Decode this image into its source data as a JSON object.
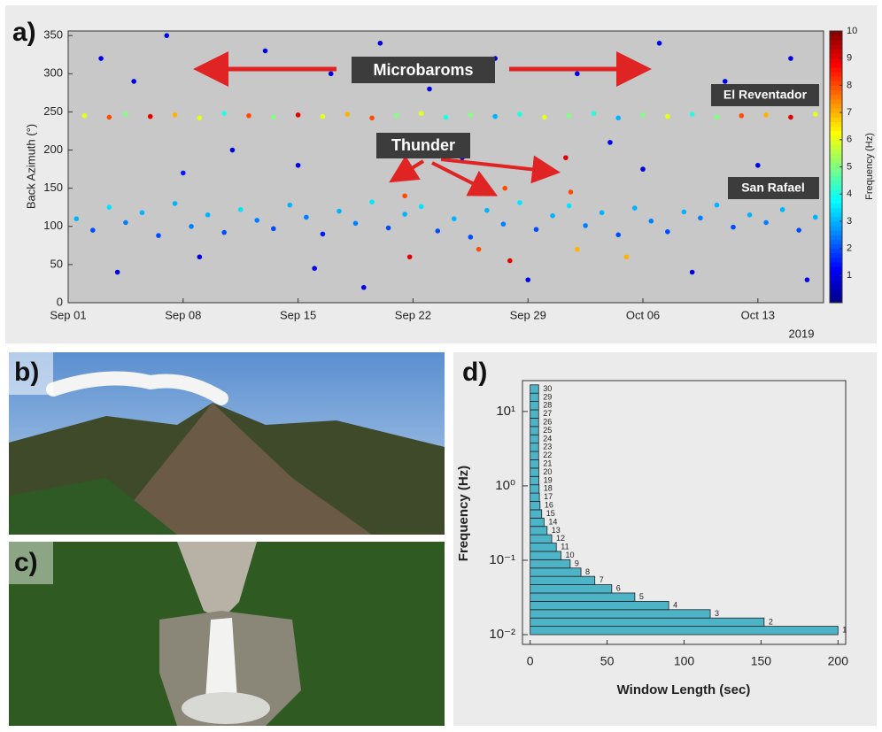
{
  "chart_data": [
    {
      "type": "scatter",
      "panel_label": "a)",
      "ylabel": "Back Azimuth (°)",
      "xlim": [
        0,
        46
      ],
      "ylim": [
        0,
        356
      ],
      "xticks": [
        {
          "value": 0,
          "label": "Sep 01"
        },
        {
          "value": 7,
          "label": "Sep 08"
        },
        {
          "value": 14,
          "label": "Sep 15"
        },
        {
          "value": 21,
          "label": "Sep 22"
        },
        {
          "value": 28,
          "label": "Sep 29"
        },
        {
          "value": 35,
          "label": "Oct 06"
        },
        {
          "value": 42,
          "label": "Oct 13"
        }
      ],
      "x_year_label": "2019",
      "yticks": [
        0,
        50,
        100,
        150,
        200,
        250,
        300,
        350
      ],
      "colormap": "jet",
      "colorbar_label": "Frequency (Hz)",
      "clim": [
        0,
        10
      ],
      "colorbar_ticks": [
        1,
        2,
        3,
        4,
        5,
        6,
        7,
        8,
        9,
        10
      ],
      "annotations": [
        "Microbaroms",
        "Thunder",
        "El Reventador",
        "San Rafael"
      ],
      "points": [
        [
          1,
          245,
          6
        ],
        [
          2.5,
          243,
          8
        ],
        [
          3.5,
          247,
          5
        ],
        [
          5,
          244,
          9
        ],
        [
          6.5,
          246,
          7
        ],
        [
          8,
          242,
          6
        ],
        [
          9.5,
          248,
          4
        ],
        [
          11,
          245,
          8
        ],
        [
          12.5,
          243,
          5
        ],
        [
          14,
          246,
          9
        ],
        [
          15.5,
          244,
          6
        ],
        [
          17,
          247,
          7
        ],
        [
          18.5,
          242,
          8
        ],
        [
          20,
          245,
          5
        ],
        [
          21.5,
          248,
          6
        ],
        [
          23,
          243,
          4
        ],
        [
          24.5,
          246,
          5
        ],
        [
          26,
          244,
          3
        ],
        [
          27.5,
          247,
          4
        ],
        [
          29,
          243,
          6
        ],
        [
          30.5,
          245,
          5
        ],
        [
          32,
          248,
          4
        ],
        [
          33.5,
          242,
          3
        ],
        [
          35,
          246,
          5
        ],
        [
          36.5,
          244,
          6
        ],
        [
          38,
          247,
          4
        ],
        [
          39.5,
          243,
          5
        ],
        [
          41,
          245,
          8
        ],
        [
          42.5,
          246,
          7
        ],
        [
          44,
          243,
          9
        ],
        [
          45.5,
          247,
          6
        ],
        [
          0.5,
          110,
          3
        ],
        [
          1.5,
          95,
          2
        ],
        [
          2.5,
          125,
          3.5
        ],
        [
          3.5,
          105,
          2.5
        ],
        [
          4.5,
          118,
          3
        ],
        [
          5.5,
          88,
          2
        ],
        [
          6.5,
          130,
          3
        ],
        [
          7.5,
          100,
          2.5
        ],
        [
          8.5,
          115,
          3
        ],
        [
          9.5,
          92,
          2
        ],
        [
          10.5,
          122,
          3.5
        ],
        [
          11.5,
          108,
          2.5
        ],
        [
          12.5,
          97,
          2
        ],
        [
          13.5,
          128,
          3
        ],
        [
          14.5,
          112,
          2.5
        ],
        [
          15.5,
          90,
          1.5
        ],
        [
          16.5,
          120,
          3
        ],
        [
          17.5,
          104,
          2.5
        ],
        [
          18.5,
          132,
          3.5
        ],
        [
          19.5,
          98,
          2
        ],
        [
          20.5,
          116,
          3
        ],
        [
          21.5,
          126,
          3.5
        ],
        [
          22.5,
          94,
          2
        ],
        [
          23.5,
          110,
          3
        ],
        [
          24.5,
          86,
          2
        ],
        [
          25.5,
          121,
          3
        ],
        [
          26.5,
          103,
          2.5
        ],
        [
          27.5,
          131,
          3.5
        ],
        [
          28.5,
          96,
          2
        ],
        [
          29.5,
          114,
          3
        ],
        [
          30.5,
          127,
          3.5
        ],
        [
          31.5,
          101,
          2.5
        ],
        [
          32.5,
          118,
          3
        ],
        [
          33.5,
          89,
          2
        ],
        [
          34.5,
          124,
          3
        ],
        [
          35.5,
          107,
          2.5
        ],
        [
          36.5,
          93,
          2
        ],
        [
          37.5,
          119,
          3
        ],
        [
          38.5,
          111,
          2.5
        ],
        [
          39.5,
          128,
          3
        ],
        [
          40.5,
          99,
          2
        ],
        [
          41.5,
          115,
          3
        ],
        [
          42.5,
          105,
          2.5
        ],
        [
          43.5,
          122,
          3
        ],
        [
          44.5,
          95,
          2
        ],
        [
          45.5,
          112,
          3
        ],
        [
          20.2,
          170,
          9
        ],
        [
          20.5,
          140,
          8
        ],
        [
          20.8,
          60,
          9
        ],
        [
          26.6,
          150,
          8
        ],
        [
          26.9,
          55,
          9
        ],
        [
          30.3,
          190,
          9
        ],
        [
          30.6,
          145,
          8
        ],
        [
          31,
          70,
          7
        ],
        [
          25,
          70,
          8
        ],
        [
          34,
          60,
          7
        ],
        [
          2,
          320,
          1
        ],
        [
          4,
          290,
          1
        ],
        [
          6,
          350,
          1
        ],
        [
          8,
          60,
          1
        ],
        [
          10,
          200,
          1
        ],
        [
          12,
          330,
          1
        ],
        [
          14,
          180,
          1
        ],
        [
          16,
          300,
          1
        ],
        [
          18,
          20,
          1
        ],
        [
          19,
          340,
          1
        ],
        [
          22,
          280,
          1
        ],
        [
          24,
          190,
          1
        ],
        [
          26,
          320,
          1
        ],
        [
          28,
          30,
          1
        ],
        [
          31,
          300,
          1
        ],
        [
          33,
          210,
          1
        ],
        [
          36,
          340,
          1
        ],
        [
          38,
          40,
          1
        ],
        [
          40,
          290,
          1
        ],
        [
          42,
          180,
          1
        ],
        [
          44,
          320,
          1
        ],
        [
          45,
          30,
          1
        ],
        [
          7,
          170,
          1.5
        ],
        [
          3,
          40,
          1
        ],
        [
          15,
          45,
          1
        ],
        [
          35,
          175,
          1
        ]
      ]
    },
    {
      "type": "hbar-bins",
      "panel_label": "d)",
      "xlabel": "Window Length (sec)",
      "ylabel": "Frequency (Hz)",
      "yscale": "log",
      "xlim": [
        -5,
        205
      ],
      "ylim": [
        0.0074,
        26
      ],
      "xticks": [
        0,
        50,
        100,
        150,
        200
      ],
      "yticks": [
        {
          "value": 0.01,
          "label": "10⁻²"
        },
        {
          "value": 0.1,
          "label": "10⁻¹"
        },
        {
          "value": 1,
          "label": "10⁰"
        },
        {
          "value": 10,
          "label": "10¹"
        }
      ],
      "color": "#4db3c6",
      "categories": [
        "1",
        "2",
        "3",
        "4",
        "5",
        "6",
        "7",
        "8",
        "9",
        "10",
        "11",
        "12",
        "13",
        "14",
        "15",
        "16",
        "17",
        "18",
        "19",
        "20",
        "21",
        "22",
        "23",
        "24",
        "25",
        "26",
        "27",
        "28",
        "29",
        "30"
      ],
      "bins": [
        0.01,
        0.01294,
        0.01674,
        0.02167,
        0.02804,
        0.03628,
        0.04695,
        0.06075,
        0.07861,
        0.1017,
        0.1316,
        0.1703,
        0.2204,
        0.2852,
        0.369,
        0.4775,
        0.6179,
        0.7996,
        1.035,
        1.339,
        1.733,
        2.242,
        2.901,
        3.754,
        4.858,
        6.286,
        8.135,
        10.53,
        13.62,
        17.62,
        22.8
      ],
      "values": [
        200,
        152,
        117,
        90,
        68,
        53,
        42,
        33,
        26,
        20,
        17,
        14,
        11,
        9,
        7.5,
        6.4,
        6,
        5.8,
        5.7,
        5.6,
        5.6,
        5.5,
        5.5,
        5.5,
        5.5,
        5.5,
        5.5,
        5.5,
        5.5,
        5.5
      ]
    }
  ],
  "photos": [
    {
      "label": "b)"
    },
    {
      "label": "c)"
    }
  ]
}
